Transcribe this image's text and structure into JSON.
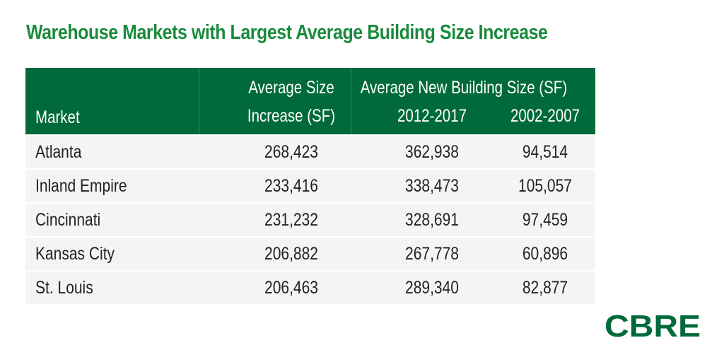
{
  "title": "Warehouse Markets with Largest Average Building Size Increase",
  "header": {
    "market": "Market",
    "avg_increase_line1": "Average Size",
    "avg_increase_line2": "Increase (SF)",
    "new_building": "Average New Building Size (SF)",
    "period1": "2012-2017",
    "period2": "2002-2007"
  },
  "rows": [
    {
      "market": "Atlanta",
      "avg_increase": "268,423",
      "p2012_2017": "362,938",
      "p2002_2007": "94,514"
    },
    {
      "market": "Inland Empire",
      "avg_increase": "233,416",
      "p2012_2017": "338,473",
      "p2002_2007": "105,057"
    },
    {
      "market": "Cincinnati",
      "avg_increase": "231,232",
      "p2012_2017": "328,691",
      "p2002_2007": "97,459"
    },
    {
      "market": "Kansas City",
      "avg_increase": "206,882",
      "p2012_2017": "267,778",
      "p2002_2007": "60,896"
    },
    {
      "market": "St. Louis",
      "avg_increase": "206,463",
      "p2012_2017": "289,340",
      "p2002_2007": "82,877"
    }
  ],
  "logo_text": "CBRE",
  "colors": {
    "title_green": "#1a8a3c",
    "header_green": "#006a3b",
    "row_background": "#f4f4f4",
    "logo_green": "#006a3b"
  },
  "chart_data": {
    "type": "table",
    "title": "Warehouse Markets with Largest Average Building Size Increase",
    "columns": [
      "Market",
      "Average Size Increase (SF)",
      "Average New Building Size (SF) 2012-2017",
      "Average New Building Size (SF) 2002-2007"
    ],
    "rows": [
      [
        "Atlanta",
        268423,
        362938,
        94514
      ],
      [
        "Inland Empire",
        233416,
        338473,
        105057
      ],
      [
        "Cincinnati",
        231232,
        328691,
        97459
      ],
      [
        "Kansas City",
        206882,
        267778,
        60896
      ],
      [
        "St. Louis",
        206463,
        289340,
        82877
      ]
    ]
  }
}
